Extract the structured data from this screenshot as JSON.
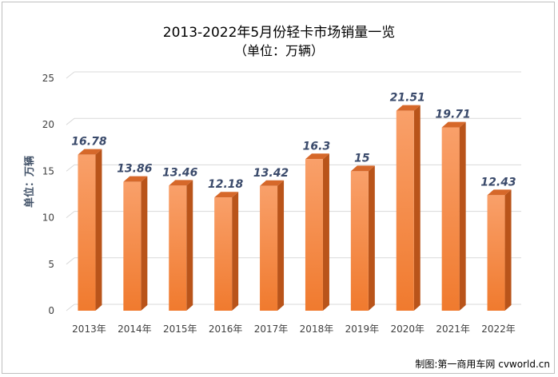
{
  "title_line1": "2013-2022年5月份轻卡市场销量一览",
  "title_line2": "（单位：万辆）",
  "credit": "制图:第一商用车网 cvworld.cn",
  "chart_data": {
    "type": "bar",
    "title": "2013-2022年5月份轻卡市场销量一览",
    "subtitle": "（单位：万辆）",
    "ylabel": "单位：万辆",
    "xlabel": "",
    "categories": [
      "2013年",
      "2014年",
      "2015年",
      "2016年",
      "2017年",
      "2018年",
      "2019年",
      "2020年",
      "2021年",
      "2022年"
    ],
    "values": [
      16.78,
      13.86,
      13.46,
      12.18,
      13.42,
      16.3,
      15,
      21.51,
      19.71,
      12.43
    ],
    "value_labels": [
      "16.78",
      "13.86",
      "13.46",
      "12.18",
      "13.42",
      "16.3",
      "15",
      "21.51",
      "19.71",
      "12.43"
    ],
    "ylim": [
      0,
      25
    ],
    "yticks": [
      0,
      5,
      10,
      15,
      20,
      25
    ],
    "grid": true,
    "legend": "none",
    "bar_color": "#f07a2e",
    "bar_color_light": "#f9a06a",
    "bar_side_color": "#b9541a",
    "bar_top_color": "#d6682a"
  }
}
